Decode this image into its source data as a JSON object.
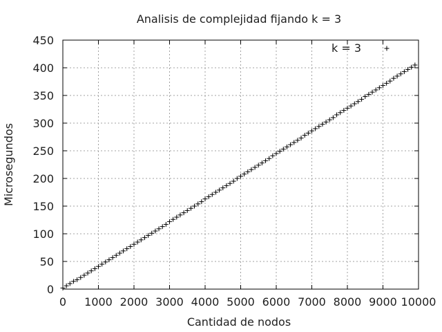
{
  "chart_data": {
    "type": "scatter",
    "title": "Analisis de complejidad fijando k = 3",
    "xlabel": "Cantidad de nodos",
    "ylabel": "Microsegundos",
    "xlim": [
      0,
      10000
    ],
    "ylim": [
      0,
      450
    ],
    "xticks": [
      0,
      1000,
      2000,
      3000,
      4000,
      5000,
      6000,
      7000,
      8000,
      9000,
      10000
    ],
    "yticks": [
      0,
      50,
      100,
      150,
      200,
      250,
      300,
      350,
      400,
      450
    ],
    "grid": true,
    "legend_position": "top-right",
    "marker": "plus",
    "series": [
      {
        "name": "k = 3",
        "x": [
          0,
          100,
          200,
          300,
          400,
          500,
          600,
          700,
          800,
          900,
          1000,
          1100,
          1200,
          1300,
          1400,
          1500,
          1600,
          1700,
          1800,
          1900,
          2000,
          2100,
          2200,
          2300,
          2400,
          2500,
          2600,
          2700,
          2800,
          2900,
          3000,
          3100,
          3200,
          3300,
          3400,
          3500,
          3600,
          3700,
          3800,
          3900,
          4000,
          4100,
          4200,
          4300,
          4400,
          4500,
          4600,
          4700,
          4800,
          4900,
          5000,
          5100,
          5200,
          5300,
          5400,
          5500,
          5600,
          5700,
          5800,
          5900,
          6000,
          6100,
          6200,
          6300,
          6400,
          6500,
          6600,
          6700,
          6800,
          6900,
          7000,
          7100,
          7200,
          7300,
          7400,
          7500,
          7600,
          7700,
          7800,
          7900,
          8000,
          8100,
          8200,
          8300,
          8400,
          8500,
          8600,
          8700,
          8800,
          8900,
          9000,
          9100,
          9200,
          9300,
          9400,
          9500,
          9600,
          9700,
          9800,
          9900
        ],
        "y": [
          2,
          6,
          10,
          14,
          17,
          21,
          25,
          29,
          33,
          37,
          41,
          45,
          49,
          53,
          57,
          61,
          65,
          69,
          73,
          77,
          81,
          85,
          89,
          93,
          97,
          101,
          105,
          109,
          113,
          117,
          122,
          126,
          130,
          134,
          138,
          142,
          146,
          150,
          154,
          158,
          163,
          167,
          171,
          175,
          179,
          183,
          187,
          191,
          195,
          200,
          204,
          208,
          212,
          216,
          220,
          224,
          228,
          232,
          236,
          241,
          245,
          249,
          253,
          257,
          261,
          265,
          269,
          273,
          278,
          282,
          286,
          290,
          294,
          298,
          302,
          306,
          310,
          315,
          319,
          323,
          327,
          331,
          335,
          339,
          343,
          348,
          352,
          356,
          360,
          364,
          368,
          372,
          376,
          381,
          385,
          389,
          393,
          397,
          401,
          405
        ]
      }
    ]
  }
}
